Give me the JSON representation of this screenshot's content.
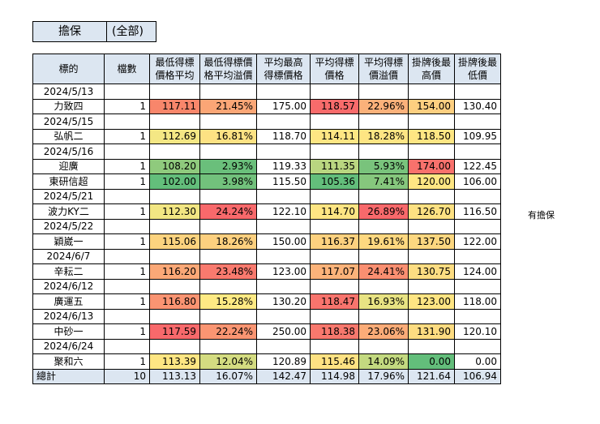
{
  "title": {
    "left": "擔保",
    "right": "(全部)"
  },
  "headers": [
    "標的",
    "檔數",
    "最低得標價格平均",
    "最低得標價格平均溢價",
    "平均最高得標價格",
    "平均得標價格",
    "平均得標價溢價",
    "掛牌後最高價",
    "掛牌後最低價"
  ],
  "header_lines": [
    [
      "標的"
    ],
    [
      "檔數"
    ],
    [
      "最低得標",
      "價格平均"
    ],
    [
      "最低得標價",
      "格平均溢價"
    ],
    [
      "平均最高",
      "得標價格"
    ],
    [
      "平均得標",
      "價格"
    ],
    [
      "平均得標",
      "價溢價"
    ],
    [
      "掛牌後最",
      "高價"
    ],
    [
      "掛牌後最",
      "低價"
    ]
  ],
  "groups": [
    {
      "date": "2024/5/13",
      "rows": [
        {
          "name": "力致四",
          "count": "1",
          "v1": "117.11",
          "v2": "21.45%",
          "v3": "175.00",
          "v4": "118.57",
          "v5": "22.96%",
          "v6": "154.00",
          "v7": "130.40",
          "c1": "#f8866b",
          "c2": "#fba676",
          "c4": "#f86b6b",
          "c5": "#fbb17a",
          "c6": "#fdcf80"
        }
      ]
    },
    {
      "date": "2024/5/15",
      "rows": [
        {
          "name": "弘帆二",
          "count": "1",
          "v1": "112.69",
          "v2": "16.81%",
          "v3": "118.70",
          "v4": "114.11",
          "v5": "18.28%",
          "v6": "118.50",
          "v7": "109.95",
          "c1": "#f4e784",
          "c2": "#fde283",
          "c4": "#fee683",
          "c5": "#fee583",
          "c6": "#fee683"
        }
      ]
    },
    {
      "date": "2024/5/16",
      "rows": [
        {
          "name": "迎廣",
          "count": "1",
          "v1": "108.20",
          "v2": "2.93%",
          "v3": "119.33",
          "v4": "111.35",
          "v5": "5.93%",
          "v6": "174.00",
          "v7": "122.45",
          "c1": "#8fca7d",
          "c2": "#6abf7b",
          "c4": "#b9d680",
          "c5": "#79c37c",
          "c6": "#f8716c"
        },
        {
          "name": "東研信超",
          "count": "1",
          "v1": "102.00",
          "v2": "3.98%",
          "v3": "115.50",
          "v4": "105.36",
          "v5": "7.41%",
          "v6": "120.00",
          "v7": "106.00",
          "c1": "#63be7b",
          "c2": "#72c17c",
          "c4": "#63be7b",
          "c5": "#86c77d",
          "c6": "#fee683"
        }
      ]
    },
    {
      "date": "2024/5/21",
      "rows": [
        {
          "name": "波力KY二",
          "count": "1",
          "v1": "112.30",
          "v2": "24.24%",
          "v3": "122.10",
          "v4": "114.70",
          "v5": "26.89%",
          "v6": "126.70",
          "v7": "116.50",
          "c1": "#f2e683",
          "c2": "#f8696b",
          "c4": "#fee583",
          "c5": "#f8696b",
          "c6": "#fde182"
        }
      ]
    },
    {
      "date": "2024/5/22",
      "rows": [
        {
          "name": "穎崴一",
          "count": "1",
          "v1": "115.06",
          "v2": "18.26%",
          "v3": "150.00",
          "v4": "116.37",
          "v5": "19.61%",
          "v6": "137.50",
          "v7": "122.00",
          "c1": "#fcd37f",
          "c2": "#fdd07f",
          "c4": "#fdd17f",
          "c5": "#fed880",
          "c6": "#fcd780"
        }
      ]
    },
    {
      "date": "2024/6/7",
      "rows": [
        {
          "name": "辛耘二",
          "count": "1",
          "v1": "116.20",
          "v2": "23.48%",
          "v3": "123.00",
          "v4": "117.07",
          "v5": "24.41%",
          "v6": "130.75",
          "v7": "124.00",
          "c1": "#fba877",
          "c2": "#f97a6e",
          "c4": "#fcb37a",
          "c5": "#fa8f71",
          "c6": "#fddd82"
        }
      ]
    },
    {
      "date": "2024/6/12",
      "rows": [
        {
          "name": "廣運五",
          "count": "1",
          "v1": "116.80",
          "v2": "15.28%",
          "v3": "130.20",
          "v4": "118.47",
          "v5": "16.93%",
          "v6": "123.00",
          "v7": "118.00",
          "c1": "#fa9472",
          "c2": "#feea84",
          "c4": "#f8746d",
          "c5": "#e8e383",
          "c6": "#fee583"
        }
      ]
    },
    {
      "date": "2024/6/13",
      "rows": [
        {
          "name": "中砂一",
          "count": "1",
          "v1": "117.59",
          "v2": "22.24%",
          "v3": "250.00",
          "v4": "118.38",
          "v5": "23.06%",
          "v6": "131.90",
          "v7": "120.10",
          "c1": "#f8696b",
          "c2": "#fa9572",
          "c4": "#f8786d",
          "c5": "#fbac78",
          "c6": "#fddc81"
        }
      ]
    },
    {
      "date": "2024/6/24",
      "rows": [
        {
          "name": "聚和六",
          "count": "1",
          "v1": "113.39",
          "v2": "12.04%",
          "v3": "120.89",
          "v4": "115.46",
          "v5": "14.09%",
          "v6": "0.00",
          "v7": "0.00",
          "c1": "#fee683",
          "c2": "#d4dc81",
          "c4": "#fee283",
          "c5": "#c3d980",
          "c6": "#63be7b"
        }
      ]
    }
  ],
  "total": {
    "label": "總計",
    "count": "10",
    "v1": "113.13",
    "v2": "16.07%",
    "v3": "142.47",
    "v4": "114.98",
    "v5": "17.96%",
    "v6": "121.64",
    "v7": "106.94"
  },
  "note": "有擔保"
}
